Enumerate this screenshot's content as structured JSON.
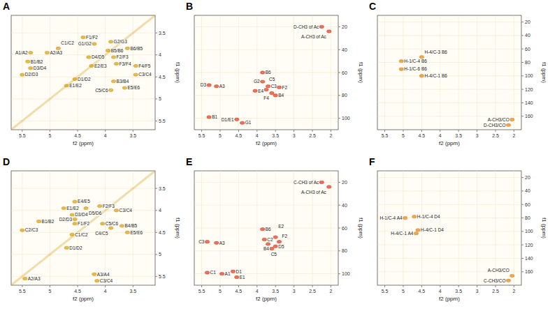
{
  "chart_data": [
    {
      "type": "scatter",
      "title": "A",
      "color": "#d9a21b",
      "x_label": "f2 (ppm)",
      "y_label": "f1 (ppm)",
      "xlim": [
        5.7,
        3.1
      ],
      "ylim": [
        3.1,
        5.7
      ],
      "xticks": [
        5.5,
        5.0,
        4.5,
        4.0,
        3.5
      ],
      "yticks": [
        3.5,
        4.0,
        4.5,
        5.0,
        5.5
      ],
      "annotations": [
        {
          "text": "A1/A2",
          "x": 5.35,
          "y": 3.95
        },
        {
          "text": "A2/A3",
          "x": 5.05,
          "y": 3.95
        },
        {
          "text": "C1/C2",
          "x": 4.85,
          "y": 3.85
        },
        {
          "text": "B1/B2",
          "x": 5.4,
          "y": 4.15
        },
        {
          "text": "D3/D4",
          "x": 5.35,
          "y": 4.3
        },
        {
          "text": "D2/D3",
          "x": 5.5,
          "y": 4.45
        },
        {
          "text": "F1/F2",
          "x": 4.4,
          "y": 3.6
        },
        {
          "text": "G1/G2",
          "x": 4.2,
          "y": 3.75
        },
        {
          "text": "G2/G3",
          "x": 3.9,
          "y": 3.7
        },
        {
          "text": "B5/B6",
          "x": 3.95,
          "y": 3.9
        },
        {
          "text": "B6/B5",
          "x": 3.6,
          "y": 3.85
        },
        {
          "text": "F2/F3",
          "x": 3.85,
          "y": 4.05
        },
        {
          "text": "F3/F4",
          "x": 3.8,
          "y": 4.2
        },
        {
          "text": "F4/F5",
          "x": 3.45,
          "y": 4.25
        },
        {
          "text": "C3/C4",
          "x": 3.45,
          "y": 4.45
        },
        {
          "text": "D4/D5",
          "x": 4.3,
          "y": 4.05
        },
        {
          "text": "E2/E3",
          "x": 4.25,
          "y": 4.25
        },
        {
          "text": "D1/D2",
          "x": 4.55,
          "y": 4.55
        },
        {
          "text": "E1/E2",
          "x": 4.7,
          "y": 4.7
        },
        {
          "text": "B3/B4",
          "x": 3.85,
          "y": 4.6
        },
        {
          "text": "C5/C6",
          "x": 3.9,
          "y": 4.8
        },
        {
          "text": "E5/E6",
          "x": 3.65,
          "y": 4.75
        }
      ]
    },
    {
      "type": "scatter",
      "title": "B",
      "color": "#e0442c",
      "x_label": "f2 (ppm)",
      "y_label": "f1 (ppm)",
      "xlim": [
        5.7,
        1.8
      ],
      "ylim": [
        10,
        110
      ],
      "xticks": [
        5.5,
        5.0,
        4.5,
        4.0,
        3.5,
        3.0,
        2.5,
        2.0
      ],
      "yticks": [
        20,
        40,
        60,
        80,
        100
      ],
      "annotations": [
        {
          "text": "D-CH3 of Ac",
          "x": 2.25,
          "y": 20
        },
        {
          "text": "A-CH3 of Ac",
          "x": 2.05,
          "y": 24
        },
        {
          "text": "B6",
          "x": 3.85,
          "y": 60
        },
        {
          "text": "D3",
          "x": 5.3,
          "y": 71
        },
        {
          "text": "A3",
          "x": 5.1,
          "y": 72
        },
        {
          "text": "E4",
          "x": 4.05,
          "y": 76
        },
        {
          "text": "C3",
          "x": 3.7,
          "y": 72
        },
        {
          "text": "G2",
          "x": 3.85,
          "y": 68
        },
        {
          "text": "C5",
          "x": 3.75,
          "y": 75
        },
        {
          "text": "F4",
          "x": 3.6,
          "y": 78
        },
        {
          "text": "B4",
          "x": 3.5,
          "y": 80
        },
        {
          "text": "F2",
          "x": 3.4,
          "y": 73
        },
        {
          "text": "B1",
          "x": 5.3,
          "y": 99
        },
        {
          "text": "D1/E1",
          "x": 4.55,
          "y": 101
        },
        {
          "text": "G1",
          "x": 4.4,
          "y": 104
        }
      ]
    },
    {
      "type": "scatter",
      "title": "C",
      "color": "#e58a1f",
      "x_label": "f2 (ppm)",
      "y_label": "f1 (ppm)",
      "xlim": [
        5.7,
        1.8
      ],
      "ylim": [
        10,
        180
      ],
      "xticks": [
        5.5,
        5.0,
        4.5,
        4.0,
        3.5,
        3.0,
        2.5,
        2.0
      ],
      "yticks": [
        20,
        40,
        60,
        80,
        100,
        120,
        140,
        160
      ],
      "annotations": [
        {
          "text": "H-1/C-4 B6",
          "x": 5.05,
          "y": 78
        },
        {
          "text": "H-1/C-6 B6",
          "x": 5.05,
          "y": 90
        },
        {
          "text": "H-4/C-3 B6",
          "x": 4.5,
          "y": 72
        },
        {
          "text": "H-4/C-1 B6",
          "x": 4.5,
          "y": 100
        },
        {
          "text": "A-CH3/CO",
          "x": 2.05,
          "y": 165
        },
        {
          "text": "D-CH3/CO",
          "x": 2.15,
          "y": 173
        }
      ]
    },
    {
      "type": "scatter",
      "title": "D",
      "color": "#d9a21b",
      "x_label": "f2 (ppm)",
      "y_label": "f1 (ppm)",
      "xlim": [
        5.7,
        3.1
      ],
      "ylim": [
        3.1,
        5.7
      ],
      "xticks": [
        5.5,
        5.0,
        4.5,
        4.0,
        3.5
      ],
      "yticks": [
        3.5,
        4.0,
        4.5,
        5.0,
        5.5
      ],
      "annotations": [
        {
          "text": "A2/A3",
          "x": 5.45,
          "y": 5.55
        },
        {
          "text": "A3/A4",
          "x": 4.2,
          "y": 5.45
        },
        {
          "text": "C3/C4",
          "x": 4.15,
          "y": 5.6
        },
        {
          "text": "B1/B2",
          "x": 5.2,
          "y": 4.25
        },
        {
          "text": "C2/C3",
          "x": 5.5,
          "y": 4.45
        },
        {
          "text": "E1/E2",
          "x": 4.75,
          "y": 3.95
        },
        {
          "text": "E4/E5",
          "x": 4.55,
          "y": 3.8
        },
        {
          "text": "D5/D6",
          "x": 4.35,
          "y": 3.95
        },
        {
          "text": "F2/F3",
          "x": 4.1,
          "y": 3.9
        },
        {
          "text": "C3/C4",
          "x": 3.8,
          "y": 4.0
        },
        {
          "text": "D3/D4",
          "x": 4.6,
          "y": 4.1
        },
        {
          "text": "D2/D3",
          "x": 4.55,
          "y": 4.2
        },
        {
          "text": "F1/F2",
          "x": 4.55,
          "y": 4.3
        },
        {
          "text": "C1/C2",
          "x": 4.6,
          "y": 4.55
        },
        {
          "text": "D1/D2",
          "x": 4.7,
          "y": 4.85
        },
        {
          "text": "C5/C6",
          "x": 4.05,
          "y": 4.3
        },
        {
          "text": "C4/C5",
          "x": 3.9,
          "y": 4.4
        },
        {
          "text": "B4/B5",
          "x": 3.7,
          "y": 4.35
        },
        {
          "text": "E5/E6",
          "x": 3.6,
          "y": 4.5
        }
      ]
    },
    {
      "type": "scatter",
      "title": "E",
      "color": "#e0442c",
      "x_label": "f2 (ppm)",
      "y_label": "f1 (ppm)",
      "xlim": [
        5.7,
        1.8
      ],
      "ylim": [
        10,
        110
      ],
      "xticks": [
        5.5,
        5.0,
        4.5,
        4.0,
        3.5,
        3.0,
        2.5,
        2.0
      ],
      "yticks": [
        20,
        40,
        60,
        80,
        100
      ],
      "annotations": [
        {
          "text": "C-CH3 of Ac",
          "x": 2.25,
          "y": 20
        },
        {
          "text": "A-CH3 of Ac",
          "x": 2.05,
          "y": 24
        },
        {
          "text": "C3",
          "x": 5.35,
          "y": 72
        },
        {
          "text": "A3",
          "x": 5.1,
          "y": 73
        },
        {
          "text": "B6",
          "x": 3.85,
          "y": 61
        },
        {
          "text": "C2",
          "x": 3.8,
          "y": 70
        },
        {
          "text": "B4",
          "x": 3.6,
          "y": 78
        },
        {
          "text": "C5",
          "x": 3.7,
          "y": 74
        },
        {
          "text": "D5",
          "x": 3.5,
          "y": 76
        },
        {
          "text": "F2",
          "x": 3.4,
          "y": 72
        },
        {
          "text": "E2",
          "x": 3.5,
          "y": 68
        },
        {
          "text": "C1",
          "x": 5.35,
          "y": 99
        },
        {
          "text": "E1",
          "x": 4.55,
          "y": 103
        },
        {
          "text": "D1",
          "x": 4.65,
          "y": 98
        },
        {
          "text": "A1",
          "x": 4.95,
          "y": 100
        }
      ]
    },
    {
      "type": "scatter",
      "title": "F",
      "color": "#e58a1f",
      "x_label": "f2 (ppm)",
      "y_label": "f1 (ppm)",
      "xlim": [
        5.7,
        1.8
      ],
      "ylim": [
        10,
        180
      ],
      "xticks": [
        5.5,
        5.0,
        4.5,
        4.0,
        3.5,
        3.0,
        2.5,
        2.0
      ],
      "yticks": [
        20,
        40,
        60,
        80,
        100,
        120,
        140,
        160
      ],
      "annotations": [
        {
          "text": "H-1/C-4 D4",
          "x": 4.7,
          "y": 78
        },
        {
          "text": "H-1/C-4 A4",
          "x": 4.95,
          "y": 80
        },
        {
          "text": "H-4/C-1 D4",
          "x": 4.6,
          "y": 98
        },
        {
          "text": "H-4/C-1 A4",
          "x": 4.65,
          "y": 103
        },
        {
          "text": "C-CH3/CO",
          "x": 2.15,
          "y": 173
        },
        {
          "text": "A-CH3/CO",
          "x": 2.05,
          "y": 166
        }
      ]
    }
  ]
}
